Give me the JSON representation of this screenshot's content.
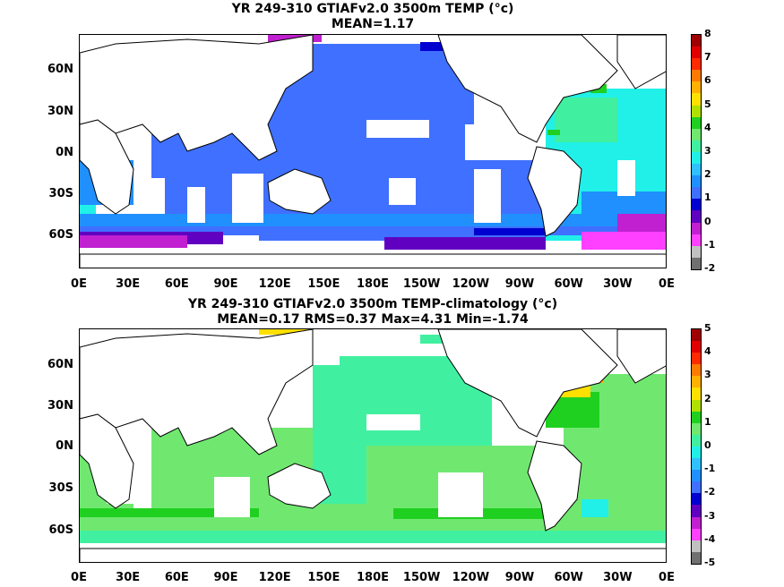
{
  "panel_top": {
    "title_line1": "YR 249-310 GTIAFv2.0 3500m TEMP (°c)",
    "title_line2": "MEAN=1.17",
    "lat_labels": [
      "60N",
      "30N",
      "0N",
      "30S",
      "60S"
    ],
    "lon_labels": [
      "0E",
      "30E",
      "60E",
      "90E",
      "120E",
      "150E",
      "180E",
      "150W",
      "120W",
      "90W",
      "60W",
      "30W",
      "0E"
    ],
    "colorbar": {
      "ticks": [
        "8",
        "7",
        "6",
        "5",
        "4",
        "3",
        "2",
        "1",
        "0",
        "-1",
        "-2"
      ],
      "colors": [
        "#a00000",
        "#e00000",
        "#ff2a00",
        "#ff7a00",
        "#ffb000",
        "#ffe000",
        "#b0e000",
        "#20d020",
        "#70e870",
        "#40f0a0",
        "#20f0e8",
        "#30c0ff",
        "#2090ff",
        "#4070ff",
        "#0000d0",
        "#6000c0",
        "#c020d0",
        "#ff40ff",
        "#c0c0c0",
        "#707070"
      ]
    }
  },
  "panel_bottom": {
    "title_line1": "YR 249-310 GTIAFv2.0 3500m TEMP-climatology (°c)",
    "title_line2": "MEAN=0.17   RMS=0.37   Max=4.31   Min=-1.74",
    "lat_labels": [
      "60N",
      "30N",
      "0N",
      "30S",
      "60S"
    ],
    "lon_labels": [
      "0E",
      "30E",
      "60E",
      "90E",
      "120E",
      "150E",
      "180E",
      "150W",
      "120W",
      "90W",
      "60W",
      "30W",
      "0E"
    ],
    "colorbar": {
      "ticks": [
        "5",
        "4",
        "3",
        "2",
        "1",
        "0",
        "-1",
        "-2",
        "-3",
        "-4",
        "-5"
      ],
      "colors": [
        "#a00000",
        "#e00000",
        "#ff2a00",
        "#ff7a00",
        "#ffb000",
        "#ffe000",
        "#b0e000",
        "#20d020",
        "#70e870",
        "#40f0a0",
        "#20f0e8",
        "#30c0ff",
        "#2090ff",
        "#4070ff",
        "#0000d0",
        "#6000c0",
        "#c020d0",
        "#ff40ff",
        "#c0c0c0",
        "#707070"
      ]
    }
  },
  "colors": {
    "deep_blue": "#4070ff",
    "mid_blue": "#2090ff",
    "purple": "#c020d0",
    "magenta": "#ff40ff",
    "teal": "#20f0e8",
    "green_mint": "#40f0a0",
    "light_green": "#70e870",
    "green": "#20d020",
    "yellow": "#ffe000",
    "orange": "#ffb000"
  }
}
